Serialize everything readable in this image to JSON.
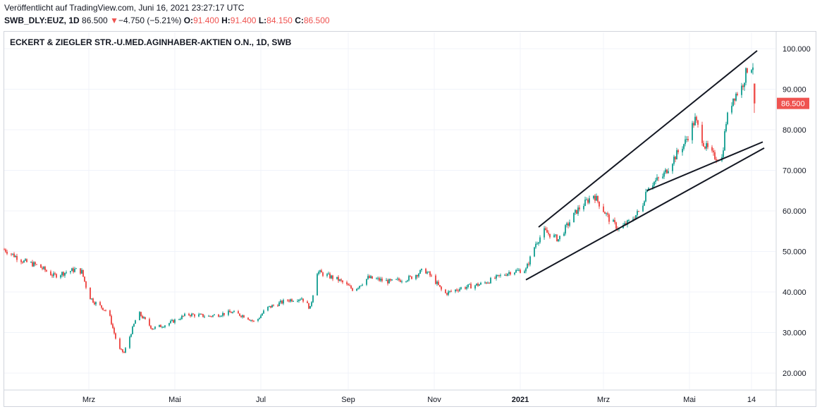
{
  "header": {
    "published": "Veröffentlicht auf TradingView.com, Juni 16, 2021 23:27:17 UTC",
    "symbol": "SWB_DLY:EUZ, 1D",
    "last": "86.500",
    "change_arrow": "▼",
    "change": "−4.750 (−5.21%)",
    "o_label": "O:",
    "o_value": "91.400",
    "h_label": "H:",
    "h_value": "91.400",
    "l_label": "L:",
    "l_value": "84.150",
    "c_label": "C:",
    "c_value": "86.500"
  },
  "chart_data": {
    "type": "candlestick",
    "title": "ECKERT & ZIEGLER STR.-U.MED.AGINHABER-AKTIEN O.N., 1D, SWB",
    "ylim": [
      16,
      104
    ],
    "y_ticks": [
      20,
      30,
      40,
      50,
      60,
      70,
      80,
      90,
      100
    ],
    "y_tick_labels": [
      "20.000",
      "30.000",
      "40.000",
      "50.000",
      "60.000",
      "70.000",
      "80.000",
      "90.000",
      "100.000"
    ],
    "x_tick_labels": [
      "Mrz",
      "Mai",
      "Jul",
      "Sep",
      "Nov",
      "2021",
      "Mrz",
      "Mai",
      "14"
    ],
    "x_tick_dates": [
      "2020-03-01",
      "2020-05-01",
      "2020-07-01",
      "2020-09-01",
      "2020-11-01",
      "2021-01-01",
      "2021-03-01",
      "2021-05-01",
      "2021-06-14"
    ],
    "x_range": [
      "2020-01-01",
      "2021-07-01"
    ],
    "last_price": 86.5,
    "last_price_label": "86.500",
    "colors": {
      "up": "#26a69a",
      "down": "#ef5350",
      "grid": "#f0f3fa",
      "trendline": "#131722"
    },
    "anchors": [
      {
        "date": "2020-01-01",
        "close": 50.5
      },
      {
        "date": "2020-01-15",
        "close": 47.5
      },
      {
        "date": "2020-01-25",
        "close": 46.5
      },
      {
        "date": "2020-02-05",
        "close": 44.0
      },
      {
        "date": "2020-02-20",
        "close": 45.5
      },
      {
        "date": "2020-02-25",
        "close": 45.0
      },
      {
        "date": "2020-03-01",
        "close": 39.0
      },
      {
        "date": "2020-03-05",
        "close": 37.5
      },
      {
        "date": "2020-03-15",
        "close": 35.0
      },
      {
        "date": "2020-03-22",
        "close": 26.0
      },
      {
        "date": "2020-03-26",
        "close": 25.0
      },
      {
        "date": "2020-03-30",
        "close": 29.0
      },
      {
        "date": "2020-04-05",
        "close": 35.0
      },
      {
        "date": "2020-04-15",
        "close": 31.0
      },
      {
        "date": "2020-04-25",
        "close": 32.0
      },
      {
        "date": "2020-05-10",
        "close": 34.5
      },
      {
        "date": "2020-05-25",
        "close": 34.0
      },
      {
        "date": "2020-06-10",
        "close": 35.0
      },
      {
        "date": "2020-06-20",
        "close": 34.0
      },
      {
        "date": "2020-06-27",
        "close": 32.5
      },
      {
        "date": "2020-07-05",
        "close": 36.0
      },
      {
        "date": "2020-07-20",
        "close": 38.0
      },
      {
        "date": "2020-07-30",
        "close": 38.5
      },
      {
        "date": "2020-08-05",
        "close": 36.0
      },
      {
        "date": "2020-08-10",
        "close": 45.0
      },
      {
        "date": "2020-08-25",
        "close": 43.0
      },
      {
        "date": "2020-09-05",
        "close": 40.5
      },
      {
        "date": "2020-09-15",
        "close": 43.5
      },
      {
        "date": "2020-10-01",
        "close": 42.5
      },
      {
        "date": "2020-10-15",
        "close": 43.5
      },
      {
        "date": "2020-10-25",
        "close": 45.5
      },
      {
        "date": "2020-11-01",
        "close": 43.0
      },
      {
        "date": "2020-11-08",
        "close": 39.5
      },
      {
        "date": "2020-11-20",
        "close": 41.0
      },
      {
        "date": "2020-12-05",
        "close": 42.0
      },
      {
        "date": "2020-12-15",
        "close": 43.5
      },
      {
        "date": "2020-12-25",
        "close": 45.0
      },
      {
        "date": "2021-01-05",
        "close": 45.5
      },
      {
        "date": "2021-01-12",
        "close": 52.0
      },
      {
        "date": "2021-01-18",
        "close": 55.0
      },
      {
        "date": "2021-01-28",
        "close": 53.0
      },
      {
        "date": "2021-02-10",
        "close": 60.0
      },
      {
        "date": "2021-02-22",
        "close": 64.0
      },
      {
        "date": "2021-03-05",
        "close": 58.0
      },
      {
        "date": "2021-03-12",
        "close": 55.5
      },
      {
        "date": "2021-03-20",
        "close": 57.5
      },
      {
        "date": "2021-03-28",
        "close": 60.5
      },
      {
        "date": "2021-04-01",
        "close": 66.0
      },
      {
        "date": "2021-04-12",
        "close": 68.5
      },
      {
        "date": "2021-04-20",
        "close": 73.0
      },
      {
        "date": "2021-04-28",
        "close": 77.0
      },
      {
        "date": "2021-05-05",
        "close": 82.5
      },
      {
        "date": "2021-05-12",
        "close": 76.0
      },
      {
        "date": "2021-05-18",
        "close": 73.5
      },
      {
        "date": "2021-05-24",
        "close": 73.0
      },
      {
        "date": "2021-05-27",
        "close": 82.0
      },
      {
        "date": "2021-06-01",
        "close": 88.0
      },
      {
        "date": "2021-06-07",
        "close": 90.5
      },
      {
        "date": "2021-06-11",
        "close": 95.0
      },
      {
        "date": "2021-06-15",
        "close": 96.0
      }
    ],
    "last_bar": {
      "date": "2021-06-16",
      "open": 91.4,
      "high": 91.4,
      "low": 84.15,
      "close": 86.5
    },
    "trendlines": [
      {
        "from": {
          "date": "2021-01-14",
          "value": 56
        },
        "to": {
          "date": "2021-06-18",
          "value": 99.5
        }
      },
      {
        "from": {
          "date": "2021-01-05",
          "value": 43
        },
        "to": {
          "date": "2021-06-23",
          "value": 75.5
        }
      },
      {
        "from": {
          "date": "2021-04-01",
          "value": 65
        },
        "to": {
          "date": "2021-06-22",
          "value": 77
        }
      }
    ]
  }
}
